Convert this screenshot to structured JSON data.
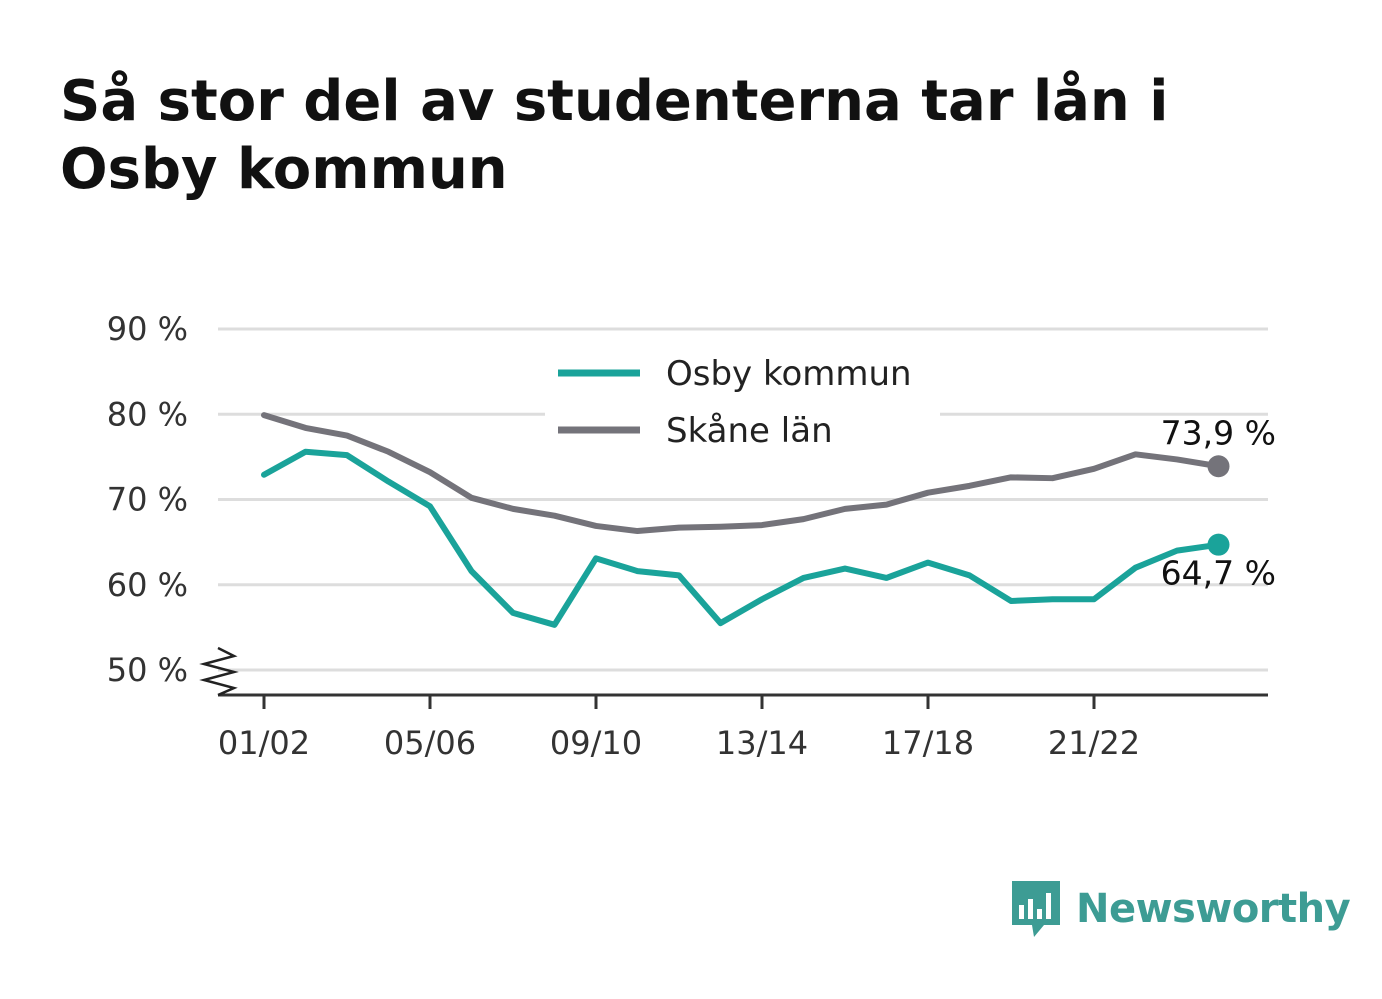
{
  "title": "Så stor del av studenterna tar lån i Osby kommun",
  "brand": {
    "name": "Newsworthy",
    "logo_icon": "bar-chart-speech-bubble-icon",
    "color": "#3d9c94"
  },
  "chart_data": {
    "type": "line",
    "x": [
      "01/02",
      "02/03",
      "03/04",
      "04/05",
      "05/06",
      "06/07",
      "07/08",
      "08/09",
      "09/10",
      "10/11",
      "11/12",
      "12/13",
      "13/14",
      "14/15",
      "15/16",
      "16/17",
      "17/18",
      "18/19",
      "19/20",
      "20/21",
      "21/22",
      "22/23",
      "23/24",
      "24/25"
    ],
    "x_tick_labels": [
      "01/02",
      "05/06",
      "09/10",
      "13/14",
      "17/18",
      "21/22"
    ],
    "y_tick_labels": [
      "50 %",
      "60 %",
      "70 %",
      "80 %",
      "90 %"
    ],
    "y_ticks": [
      50,
      60,
      70,
      80,
      90
    ],
    "ylim": [
      47,
      90
    ],
    "y_axis_break": true,
    "grid": true,
    "legend_position": "top-center",
    "series": [
      {
        "name": "Osby kommun",
        "color": "#1aa39a",
        "values": [
          72.9,
          75.6,
          75.2,
          72.1,
          69.2,
          61.6,
          56.7,
          55.3,
          63.1,
          61.6,
          61.1,
          55.5,
          58.3,
          60.8,
          61.9,
          60.8,
          62.6,
          61.1,
          58.1,
          58.3,
          58.3,
          62.0,
          64.0,
          64.7
        ],
        "end_label": "64,7 %"
      },
      {
        "name": "Skåne län",
        "color": "#74737a",
        "values": [
          79.9,
          78.4,
          77.5,
          75.6,
          73.2,
          70.2,
          68.9,
          68.1,
          66.9,
          66.3,
          66.7,
          66.8,
          67.0,
          67.7,
          68.9,
          69.4,
          70.8,
          71.6,
          72.6,
          72.5,
          73.6,
          75.3,
          74.7,
          73.9
        ],
        "end_label": "73,9 %"
      }
    ]
  }
}
